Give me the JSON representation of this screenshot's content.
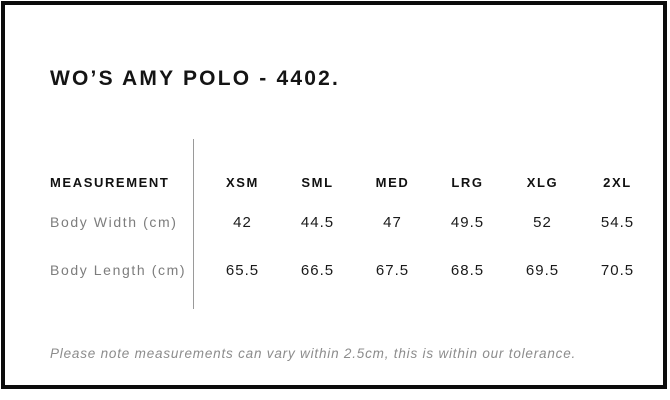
{
  "page": {
    "title": "WO’S AMY POLO - 4402.",
    "tolerance_note": "Please note measurements can vary within 2.5cm, this is within our tolerance."
  },
  "size_table": {
    "label_header": "MEASUREMENT",
    "size_headers": [
      "XSM",
      "SML",
      "MED",
      "LRG",
      "XLG",
      "2XL"
    ],
    "rows": [
      {
        "label": "Body Width (cm)",
        "values": [
          "42",
          "44.5",
          "47",
          "49.5",
          "52",
          "54.5"
        ]
      },
      {
        "label": "Body Length (cm)",
        "values": [
          "65.5",
          "66.5",
          "67.5",
          "68.5",
          "69.5",
          "70.5"
        ]
      }
    ]
  },
  "colors": {
    "frame_border": "#0b0b0b",
    "background": "#ffffff",
    "primary_text": "#141414",
    "muted_label_text": "#7d7d7d",
    "note_text": "#8c8c8c",
    "column_divider": "#9a9a9a"
  }
}
